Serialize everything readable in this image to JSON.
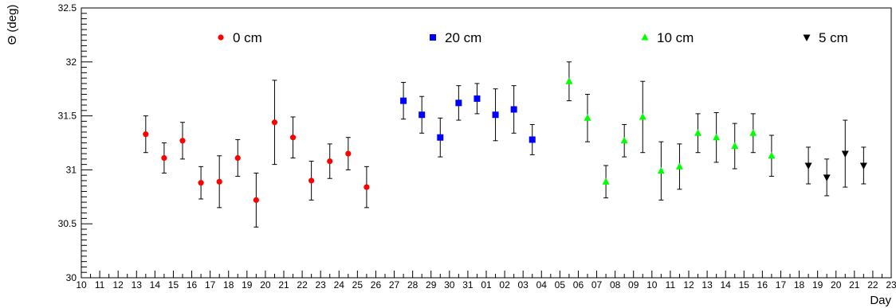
{
  "chart_data": {
    "type": "scatter",
    "title": "",
    "xlabel": "Day",
    "ylabel": "Θ (deg)",
    "ylim": [
      30,
      32.5
    ],
    "y_ticks": [
      "30",
      "30.5",
      "31",
      "31.5",
      "32",
      "32.5"
    ],
    "x_tick_labels": [
      "10",
      "11",
      "12",
      "13",
      "14",
      "15",
      "16",
      "17",
      "18",
      "19",
      "20",
      "21",
      "22",
      "23",
      "24",
      "25",
      "26",
      "27",
      "28",
      "29",
      "30",
      "31",
      "01",
      "02",
      "03",
      "04",
      "05",
      "06",
      "07",
      "08",
      "09",
      "10",
      "11",
      "12",
      "13",
      "14",
      "15",
      "16",
      "17",
      "18",
      "19",
      "20",
      "21",
      "22",
      "23"
    ],
    "legend_placement": "top",
    "grid": false,
    "series": [
      {
        "name": "0 cm",
        "color": "#ff0000",
        "marker": "circle",
        "points": [
          {
            "x": "13.5",
            "y": 31.33,
            "err": 0.17
          },
          {
            "x": "14.5",
            "y": 31.11,
            "err": 0.14
          },
          {
            "x": "15.5",
            "y": 31.27,
            "err": 0.17
          },
          {
            "x": "16.5",
            "y": 30.88,
            "err": 0.15
          },
          {
            "x": "17.5",
            "y": 30.89,
            "err": 0.24
          },
          {
            "x": "18.5",
            "y": 31.11,
            "err": 0.17
          },
          {
            "x": "19.5",
            "y": 30.72,
            "err": 0.25
          },
          {
            "x": "20.5",
            "y": 31.44,
            "err": 0.39
          },
          {
            "x": "21.5",
            "y": 31.3,
            "err": 0.19
          },
          {
            "x": "22.5",
            "y": 30.9,
            "err": 0.18
          },
          {
            "x": "23.5",
            "y": 31.08,
            "err": 0.16
          },
          {
            "x": "24.5",
            "y": 31.15,
            "err": 0.15
          },
          {
            "x": "25.5",
            "y": 30.84,
            "err": 0.19
          }
        ]
      },
      {
        "name": "20 cm",
        "color": "#0000ff",
        "marker": "square",
        "points": [
          {
            "x": "27.5",
            "y": 31.64,
            "err": 0.17
          },
          {
            "x": "28.5",
            "y": 31.51,
            "err": 0.17
          },
          {
            "x": "29.5",
            "y": 31.3,
            "err": 0.18
          },
          {
            "x": "30.5",
            "y": 31.62,
            "err": 0.16
          },
          {
            "x": "31.5",
            "y": 31.66,
            "err": 0.14
          },
          {
            "x": "01.5",
            "y": 31.51,
            "err": 0.24
          },
          {
            "x": "02.5",
            "y": 31.56,
            "err": 0.22
          },
          {
            "x": "03.5",
            "y": 31.28,
            "err": 0.14
          }
        ]
      },
      {
        "name": "10 cm",
        "color": "#00ff00",
        "marker": "triangle-up",
        "points": [
          {
            "x": "05.5",
            "y": 31.82,
            "err": 0.18
          },
          {
            "x": "06.5",
            "y": 31.48,
            "err": 0.22
          },
          {
            "x": "07.5",
            "y": 30.89,
            "err": 0.15
          },
          {
            "x": "08.5",
            "y": 31.27,
            "err": 0.15
          },
          {
            "x": "09.5",
            "y": 31.49,
            "err": 0.33
          },
          {
            "x": "10.5",
            "y": 30.99,
            "err": 0.27
          },
          {
            "x": "11.5",
            "y": 31.03,
            "err": 0.21
          },
          {
            "x": "12.5",
            "y": 31.34,
            "err": 0.18
          },
          {
            "x": "13.5",
            "y": 31.3,
            "err": 0.23
          },
          {
            "x": "14.5",
            "y": 31.22,
            "err": 0.21
          },
          {
            "x": "15.5",
            "y": 31.34,
            "err": 0.18
          },
          {
            "x": "16.5",
            "y": 31.13,
            "err": 0.19
          }
        ]
      },
      {
        "name": "5 cm",
        "color": "#000000",
        "marker": "triangle-down",
        "points": [
          {
            "x": "18.5",
            "y": 31.04,
            "err": 0.17
          },
          {
            "x": "19.5",
            "y": 30.93,
            "err": 0.17
          },
          {
            "x": "20.5",
            "y": 31.15,
            "err": 0.31
          },
          {
            "x": "21.5",
            "y": 31.04,
            "err": 0.17
          }
        ]
      }
    ]
  }
}
